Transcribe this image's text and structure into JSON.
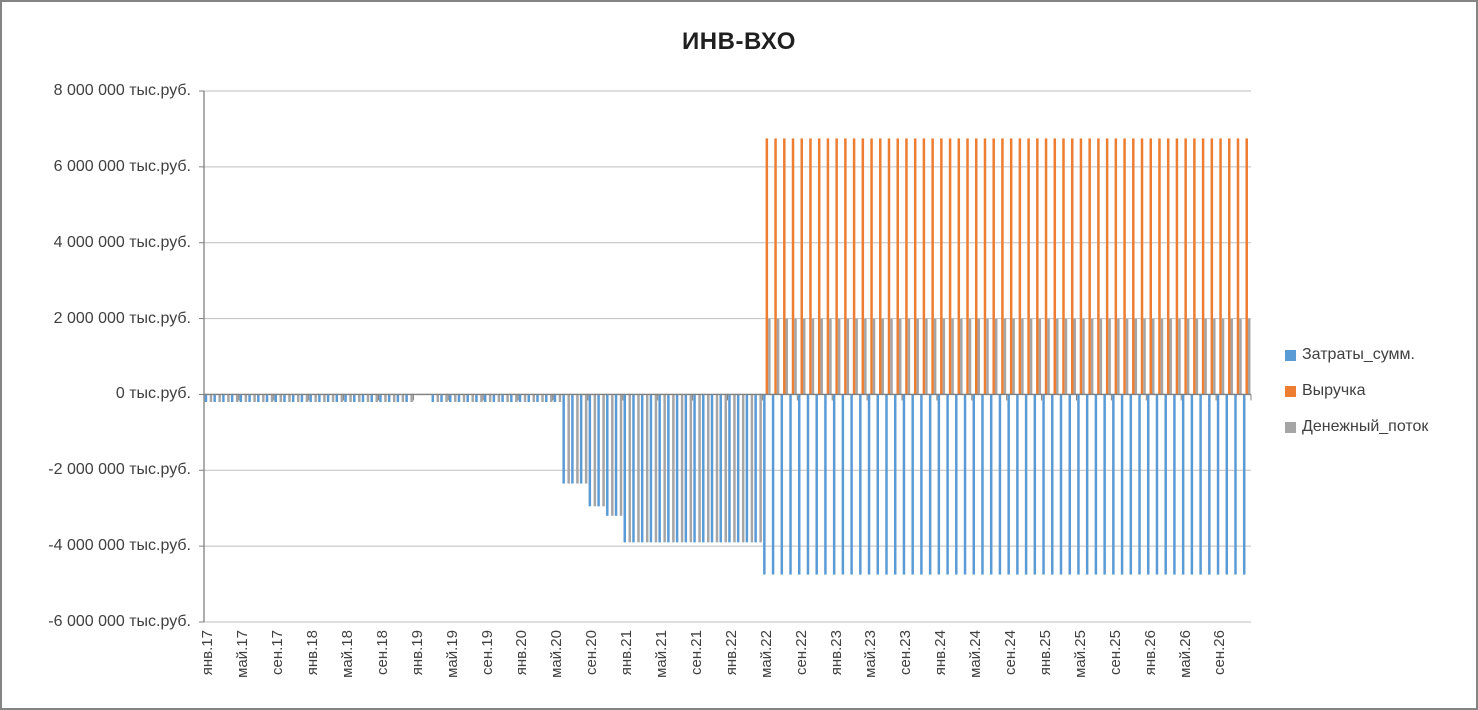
{
  "chart_data": {
    "type": "bar",
    "title": "ИНВ-ВХО",
    "value_unit": "тыс.руб.",
    "x_axis": {
      "start_month": "янв.17",
      "end_month": "дек.26",
      "months_total": 120,
      "tick_label_interval_months": 4,
      "tick_labels": [
        "янв.17",
        "май.17",
        "сен.17",
        "янв.18",
        "май.18",
        "сен.18",
        "янв.19",
        "май.19",
        "сен.19",
        "янв.20",
        "май.20",
        "сен.20",
        "янв.21",
        "май.21",
        "сен.21",
        "янв.22",
        "май.22",
        "сен.22",
        "янв.23",
        "май.23",
        "сен.23",
        "янв.24",
        "май.24",
        "сен.24",
        "янв.25",
        "май.25",
        "сен.25",
        "янв.26",
        "май.26",
        "сен.26"
      ]
    },
    "y_axis": {
      "min": -6000000,
      "max": 8000000,
      "tick_step": 2000000,
      "tick_labels": [
        "8 000 000 тыс.руб.",
        "6 000 000 тыс.руб.",
        "4 000 000 тыс.руб.",
        "2 000 000 тыс.руб.",
        "0 тыс.руб.",
        "-2 000 000 тыс.руб.",
        "-4 000 000 тыс.руб.",
        "-6 000 000 тыс.руб."
      ]
    },
    "grid": true,
    "legend_position": "right",
    "segments_format": "[from_month_index, to_month_index, value]; month 0 = янв.17, one bar per month",
    "series": [
      {
        "name": "Затраты_сумм.",
        "color": "#5B9BD5",
        "segments": [
          [
            0,
            23,
            -200000
          ],
          [
            24,
            25,
            0
          ],
          [
            26,
            40,
            -200000
          ],
          [
            41,
            43,
            -2350000
          ],
          [
            44,
            45,
            -2950000
          ],
          [
            46,
            47,
            -3200000
          ],
          [
            48,
            63,
            -3900000
          ],
          [
            64,
            119,
            -4750000
          ]
        ]
      },
      {
        "name": "Выручка",
        "color": "#ED7D31",
        "segments": [
          [
            0,
            63,
            0
          ],
          [
            64,
            119,
            6750000
          ]
        ]
      },
      {
        "name": "Денежный_поток",
        "color": "#A5A5A5",
        "segments": [
          [
            0,
            23,
            -200000
          ],
          [
            24,
            25,
            0
          ],
          [
            26,
            40,
            -200000
          ],
          [
            41,
            43,
            -2350000
          ],
          [
            44,
            45,
            -2950000
          ],
          [
            46,
            47,
            -3200000
          ],
          [
            48,
            63,
            -3900000
          ],
          [
            64,
            119,
            2000000
          ]
        ]
      }
    ]
  },
  "colors": {
    "gridline": "#BFBFBF",
    "axis_line": "#808080",
    "axis_text": "#404040",
    "title_text": "#1f1f1f",
    "chart_border": "#848484",
    "background": "#FFFFFF"
  }
}
